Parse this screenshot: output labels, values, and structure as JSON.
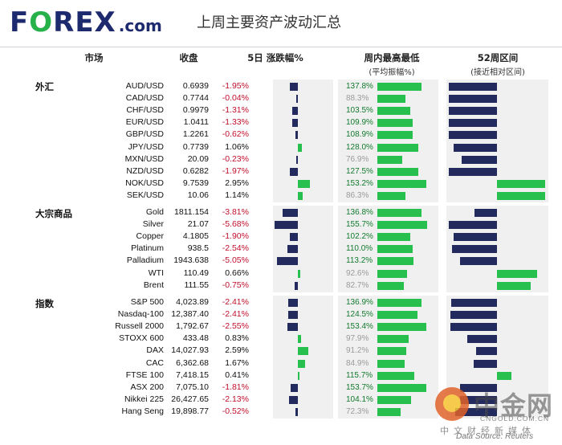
{
  "header": {
    "logo_text": "FOREX",
    "logo_suffix": ".com",
    "title": "上周主要资产波动汇总"
  },
  "columns": {
    "market": "市场",
    "close": "收盘",
    "change": "5日 涨跌幅%",
    "week_range": "周内最高最低",
    "week_range_sub": "(平均振幅%)",
    "year_range": "52周区间",
    "year_range_sub": "(接近相对区间)"
  },
  "categories": [
    {
      "label": "外汇",
      "rows": [
        {
          "name": "AUD/USD",
          "close": "0.6939",
          "change": "-1.95%",
          "change_value": -1.95,
          "week_range": "137.8%",
          "week_range_value": 137.8,
          "year_position": -0.75
        },
        {
          "name": "CAD/USD",
          "close": "0.7744",
          "change": "-0.04%",
          "change_value": -0.04,
          "week_range": "88.3%",
          "week_range_value": 88.3,
          "year_position": -0.75
        },
        {
          "name": "CHF/USD",
          "close": "0.9979",
          "change": "-1.31%",
          "change_value": -1.31,
          "week_range": "103.5%",
          "week_range_value": 103.5,
          "year_position": -0.75
        },
        {
          "name": "EUR/USD",
          "close": "1.0411",
          "change": "-1.33%",
          "change_value": -1.33,
          "week_range": "109.9%",
          "week_range_value": 109.9,
          "year_position": -0.75
        },
        {
          "name": "GBP/USD",
          "close": "1.2261",
          "change": "-0.62%",
          "change_value": -0.62,
          "week_range": "108.9%",
          "week_range_value": 108.9,
          "year_position": -0.75
        },
        {
          "name": "JPY/USD",
          "close": "0.7739",
          "change": "1.06%",
          "change_value": 1.06,
          "week_range": "128.0%",
          "week_range_value": 128.0,
          "year_position": -0.68
        },
        {
          "name": "MXN/USD",
          "close": "20.09",
          "change": "-0.23%",
          "change_value": -0.23,
          "week_range": "76.9%",
          "week_range_value": 76.9,
          "year_position": -0.55
        },
        {
          "name": "NZD/USD",
          "close": "0.6282",
          "change": "-1.97%",
          "change_value": -1.97,
          "week_range": "127.5%",
          "week_range_value": 127.5,
          "year_position": -0.75
        },
        {
          "name": "NOK/USD",
          "close": "9.7539",
          "change": "2.95%",
          "change_value": 2.95,
          "week_range": "153.2%",
          "week_range_value": 153.2,
          "year_position": 0.75
        },
        {
          "name": "SEK/USD",
          "close": "10.06",
          "change": "1.14%",
          "change_value": 1.14,
          "week_range": "86.3%",
          "week_range_value": 86.3,
          "year_position": 0.75
        }
      ]
    },
    {
      "label": "大宗商品",
      "rows": [
        {
          "name": "Gold",
          "close": "1811.154",
          "change": "-3.81%",
          "change_value": -3.81,
          "week_range": "136.8%",
          "week_range_value": 136.8,
          "year_position": -0.35
        },
        {
          "name": "Silver",
          "close": "21.07",
          "change": "-5.68%",
          "change_value": -5.68,
          "week_range": "155.7%",
          "week_range_value": 155.7,
          "year_position": -0.75
        },
        {
          "name": "Copper",
          "close": "4.1805",
          "change": "-1.90%",
          "change_value": -1.9,
          "week_range": "102.2%",
          "week_range_value": 102.2,
          "year_position": -0.67
        },
        {
          "name": "Platinum",
          "close": "938.5",
          "change": "-2.54%",
          "change_value": -2.54,
          "week_range": "110.0%",
          "week_range_value": 110.0,
          "year_position": -0.7
        },
        {
          "name": "Palladium",
          "close": "1943.638",
          "change": "-5.05%",
          "change_value": -5.05,
          "week_range": "113.2%",
          "week_range_value": 113.2,
          "year_position": -0.57
        },
        {
          "name": "WTI",
          "close": "110.49",
          "change": "0.66%",
          "change_value": 0.66,
          "week_range": "92.6%",
          "week_range_value": 92.6,
          "year_position": 0.62
        },
        {
          "name": "Brent",
          "close": "111.55",
          "change": "-0.75%",
          "change_value": -0.75,
          "week_range": "82.7%",
          "week_range_value": 82.7,
          "year_position": 0.52
        }
      ]
    },
    {
      "label": "指数",
      "rows": [
        {
          "name": "S&P 500",
          "close": "4,023.89",
          "change": "-2.41%",
          "change_value": -2.41,
          "week_range": "136.9%",
          "week_range_value": 136.9,
          "year_position": -0.71
        },
        {
          "name": "Nasdaq-100",
          "close": "12,387.40",
          "change": "-2.41%",
          "change_value": -2.41,
          "week_range": "124.5%",
          "week_range_value": 124.5,
          "year_position": -0.73
        },
        {
          "name": "Russell 2000",
          "close": "1,792.67",
          "change": "-2.55%",
          "change_value": -2.55,
          "week_range": "153.4%",
          "week_range_value": 153.4,
          "year_position": -0.73
        },
        {
          "name": "STOXX 600",
          "close": "433.48",
          "change": "0.83%",
          "change_value": 0.83,
          "week_range": "97.9%",
          "week_range_value": 97.9,
          "year_position": -0.46
        },
        {
          "name": "DAX",
          "close": "14,027.93",
          "change": "2.59%",
          "change_value": 2.59,
          "week_range": "91.2%",
          "week_range_value": 91.2,
          "year_position": -0.33
        },
        {
          "name": "CAC",
          "close": "6,362.68",
          "change": "1.67%",
          "change_value": 1.67,
          "week_range": "84.9%",
          "week_range_value": 84.9,
          "year_position": -0.36
        },
        {
          "name": "FTSE 100",
          "close": "7,418.15",
          "change": "0.41%",
          "change_value": 0.41,
          "week_range": "115.7%",
          "week_range_value": 115.7,
          "year_position": 0.22
        },
        {
          "name": "ASX 200",
          "close": "7,075.10",
          "change": "-1.81%",
          "change_value": -1.81,
          "week_range": "153.7%",
          "week_range_value": 153.7,
          "year_position": -0.58
        },
        {
          "name": "Nikkei 225",
          "close": "26,427.65",
          "change": "-2.13%",
          "change_value": -2.13,
          "week_range": "104.1%",
          "week_range_value": 104.1,
          "year_position": -0.58
        },
        {
          "name": "Hang Seng",
          "close": "19,898.77",
          "change": "-0.52%",
          "change_value": -0.52,
          "week_range": "72.3%",
          "week_range_value": 72.3,
          "year_position": -0.65
        }
      ]
    }
  ],
  "colors": {
    "negative": "#232a5e",
    "positive": "#27c04e",
    "negative_text": "#c0102c"
  },
  "watermark": {
    "brand": "中金网",
    "url": "CNGOLD.COM.CN",
    "cn_line": "中文财经新媒体",
    "source": "Data Source: Reuters"
  }
}
